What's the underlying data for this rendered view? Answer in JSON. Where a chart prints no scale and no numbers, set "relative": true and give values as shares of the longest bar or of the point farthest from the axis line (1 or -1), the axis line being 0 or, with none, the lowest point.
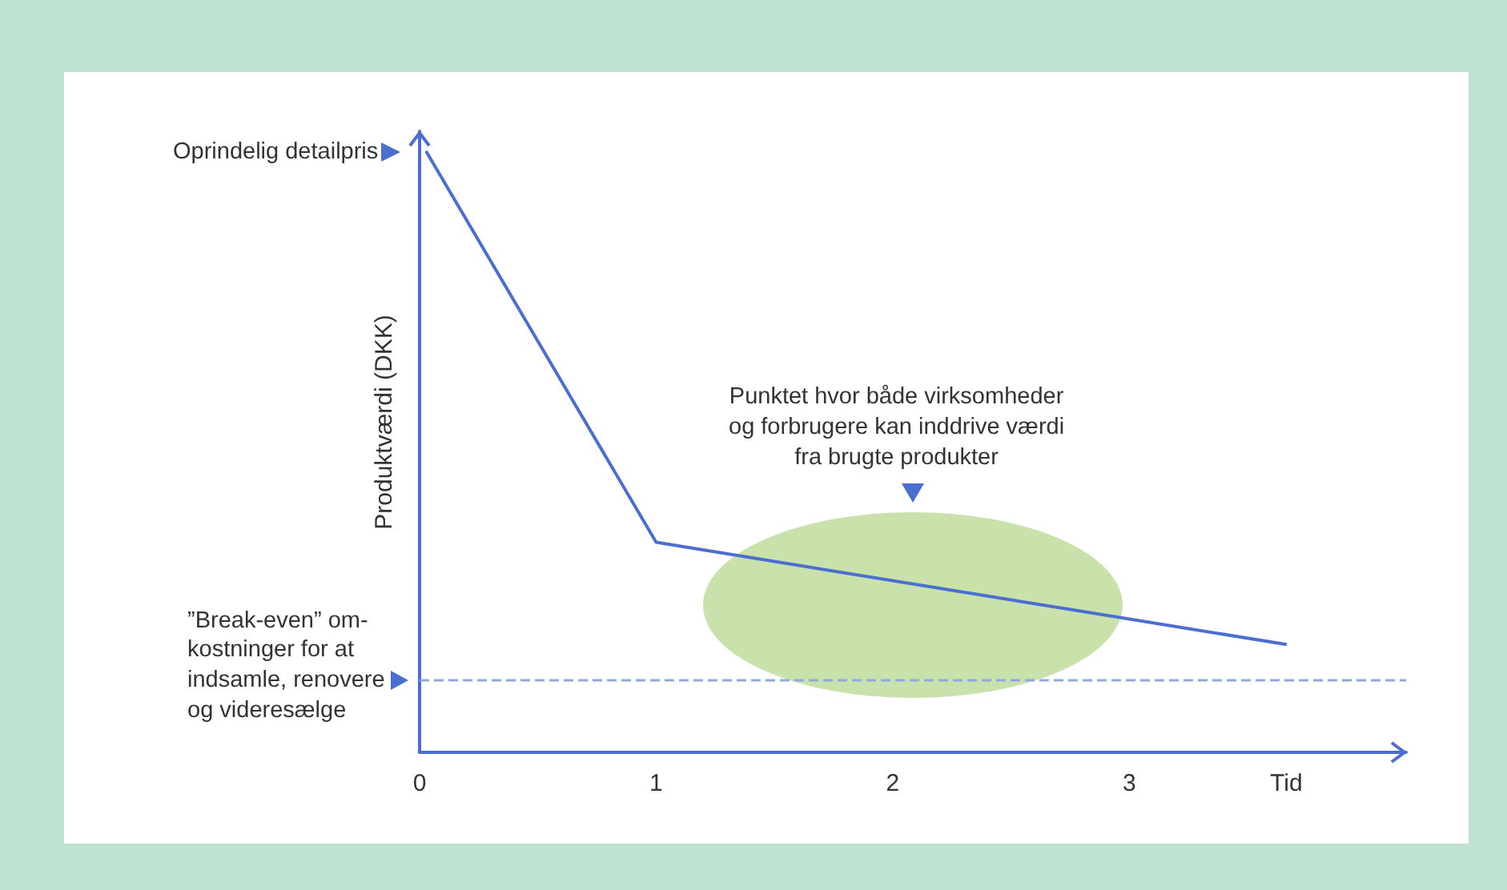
{
  "chart_data": {
    "type": "line",
    "relative": true,
    "xlabel": "Tid",
    "ylabel": "Produktværdi (DKK)",
    "x": [
      0.03,
      1,
      3.66
    ],
    "xlim": [
      0,
      4.17
    ],
    "xticks": [
      0,
      1,
      2,
      3
    ],
    "series": [
      {
        "color": "#4a6fd0",
        "values": [
          1,
          0.35,
          0.18
        ]
      }
    ],
    "ref_lines": [
      {
        "axis": "y",
        "value": 0.12,
        "label": "”Break-even” om-\nkostninger for at\nindsamle, renovere\nog videresælge",
        "color": "#8fa8e0",
        "line_style": "dashed"
      }
    ],
    "annotations": [
      {
        "text": "Oprindelig detailpris",
        "x": 0,
        "y": 1
      },
      "Punktet hvor både virksomheder\nog forbrugere kan inddrive værdi\nfra brugte produkter"
    ],
    "grid": false,
    "marker": "none",
    "line_style": "solid"
  }
}
